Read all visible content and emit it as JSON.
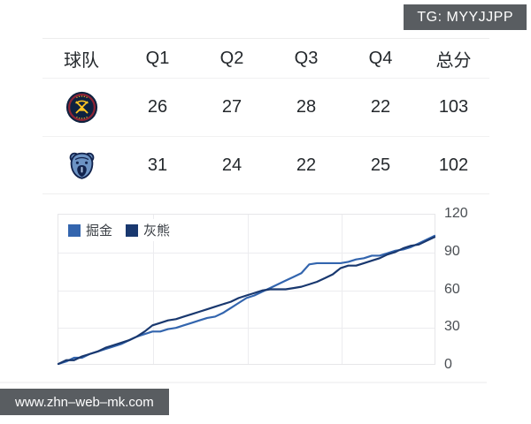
{
  "badge": {
    "text": "TG: MYYJJPP"
  },
  "watermark": {
    "text": "www.zhn–web–mk.com"
  },
  "table": {
    "headers": [
      "球队",
      "Q1",
      "Q2",
      "Q3",
      "Q4",
      "总分"
    ],
    "rows": [
      {
        "team": "掘金",
        "logo": "denver-nuggets-logo",
        "cells": [
          "26",
          "27",
          "28",
          "22",
          "103"
        ]
      },
      {
        "team": "灰熊",
        "logo": "memphis-grizzlies-logo",
        "cells": [
          "31",
          "24",
          "22",
          "25",
          "102"
        ]
      }
    ]
  },
  "colors": {
    "badge_bg": "#595d61",
    "header_text": "#9ba0a6",
    "score_text": "#24282c",
    "grid_line": "#ececef",
    "nuggets_line": "#3365ae",
    "grizzlies_line": "#19386f",
    "nuggets_logo_navy": "#0e2240",
    "nuggets_logo_maroon": "#8e2335",
    "nuggets_logo_gold": "#fec524",
    "grizzlies_logo_blue": "#6c93c4",
    "grizzlies_logo_navy": "#12234d"
  },
  "chart_data": {
    "type": "line",
    "title": "",
    "xlabel": "",
    "ylabel": "",
    "ylim": [
      0,
      120
    ],
    "yticks_top_to_bottom": [
      120,
      90,
      60,
      30,
      0
    ],
    "x_range_minutes": [
      0,
      48
    ],
    "vertical_gridlines_at_quarter_ends": [
      12,
      24,
      36
    ],
    "grid": true,
    "legend_position": "top-left-inside",
    "series": [
      {
        "name": "掘金",
        "color": "#3365ae",
        "x": [
          0,
          1,
          2,
          3,
          4,
          5,
          6,
          7,
          8,
          9,
          10,
          11,
          12,
          13,
          14,
          15,
          16,
          17,
          18,
          19,
          20,
          21,
          22,
          23,
          24,
          25,
          26,
          27,
          28,
          29,
          30,
          31,
          32,
          33,
          34,
          35,
          36,
          37,
          38,
          39,
          40,
          41,
          42,
          43,
          44,
          45,
          46,
          47,
          48
        ],
        "values": [
          0,
          2,
          5,
          5,
          8,
          10,
          12,
          14,
          16,
          19,
          22,
          24,
          26,
          26,
          28,
          29,
          31,
          33,
          35,
          37,
          38,
          41,
          45,
          49,
          53,
          55,
          58,
          61,
          64,
          67,
          70,
          73,
          80,
          81,
          81,
          81,
          81,
          82,
          84,
          85,
          87,
          87,
          89,
          91,
          92,
          94,
          97,
          100,
          103
        ]
      },
      {
        "name": "灰熊",
        "color": "#19386f",
        "x": [
          0,
          1,
          2,
          3,
          4,
          5,
          6,
          7,
          8,
          9,
          10,
          11,
          12,
          13,
          14,
          15,
          16,
          17,
          18,
          19,
          20,
          21,
          22,
          23,
          24,
          25,
          26,
          27,
          28,
          29,
          30,
          31,
          32,
          33,
          34,
          35,
          36,
          37,
          38,
          39,
          40,
          41,
          42,
          43,
          44,
          45,
          46,
          47,
          48
        ],
        "values": [
          0,
          3,
          3,
          6,
          8,
          10,
          13,
          15,
          17,
          19,
          22,
          26,
          31,
          33,
          35,
          36,
          38,
          40,
          42,
          44,
          46,
          48,
          50,
          53,
          55,
          57,
          59,
          60,
          60,
          60,
          61,
          62,
          64,
          66,
          69,
          72,
          77,
          79,
          79,
          81,
          83,
          85,
          88,
          90,
          93,
          95,
          96,
          99,
          102
        ]
      }
    ]
  }
}
